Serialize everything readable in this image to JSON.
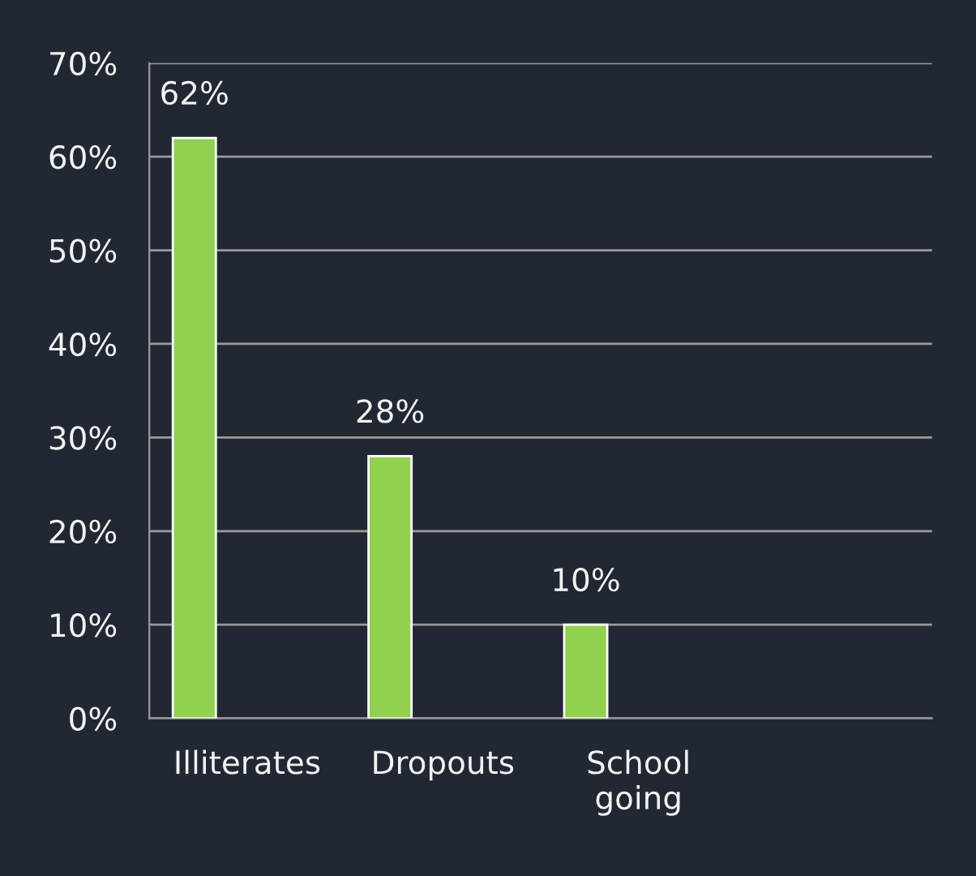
{
  "chart_data": {
    "type": "bar",
    "categories": [
      "Illiterates",
      "Dropouts",
      "School\ngoing",
      null
    ],
    "values": [
      62,
      28,
      10,
      null
    ],
    "value_labels": [
      "62%",
      "28%",
      "10%",
      null
    ],
    "color": "#92d050",
    "ylim": [
      0,
      70
    ],
    "yticks": [
      {
        "value": 0,
        "label": "0%"
      },
      {
        "value": 10,
        "label": "10%"
      },
      {
        "value": 20,
        "label": "20%"
      },
      {
        "value": 30,
        "label": "30%"
      },
      {
        "value": 40,
        "label": "40%"
      },
      {
        "value": 50,
        "label": "50%"
      },
      {
        "value": 60,
        "label": "60%"
      },
      {
        "value": 70,
        "label": "70%"
      }
    ],
    "grid": "y",
    "legend": false
  }
}
